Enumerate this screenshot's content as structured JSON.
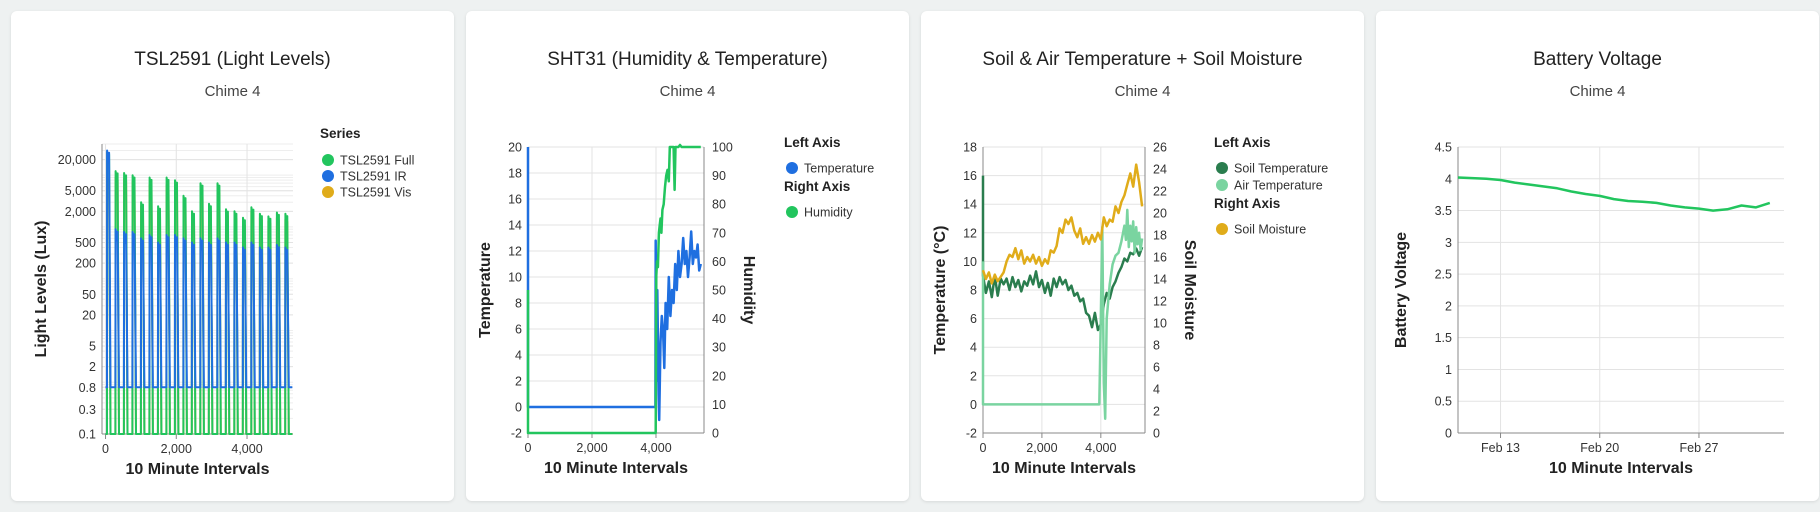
{
  "cards": [
    {
      "title": "TSL2591 (Light Levels)",
      "subtitle": "Chime 4"
    },
    {
      "title": "SHT31 (Humidity & Temperature)",
      "subtitle": "Chime 4"
    },
    {
      "title": "Soil & Air Temperature + Soil Moisture",
      "subtitle": "Chime 4"
    },
    {
      "title": "Battery Voltage",
      "subtitle": "Chime 4"
    }
  ],
  "colors": {
    "full": "#22c55e",
    "ir": "#1f6fe0",
    "vis": "#e0ac1a",
    "temperature": "#1f6fe0",
    "humidity": "#22c55e",
    "soil_temp": "#2a7d4e",
    "air_temp": "#7ad4a0",
    "soil_moisture": "#e0ac1a",
    "battery": "#22c55e",
    "grid": "#e3e3e3",
    "axis": "#888888"
  },
  "chart_data": [
    {
      "type": "line",
      "xlabel": "10 Minute Intervals",
      "ylabel": "Light Levels (Lux)",
      "yscale": "log",
      "xlim": [
        -100,
        5300
      ],
      "ylim": [
        0.1,
        40000
      ],
      "xticks": [
        0,
        2000,
        4000
      ],
      "xtick_labels": [
        "0",
        "2,000",
        "4,000"
      ],
      "yticks": [
        0.1,
        0.3,
        0.8,
        2,
        5,
        20,
        50,
        200,
        500,
        2000,
        5000,
        20000
      ],
      "ytick_labels": [
        "0.1",
        "0.3",
        "0.8",
        "2",
        "5",
        "20",
        "50",
        "200",
        "500",
        "2,000",
        "5,000",
        "20,000"
      ],
      "legend": {
        "title": "Series",
        "position": "right",
        "entries": [
          "TSL2591 Full",
          "TSL2591 IR",
          "TSL2591 Vis"
        ]
      },
      "day_period": 144,
      "series": [
        {
          "name": "TSL2591 Full",
          "color_key": "full",
          "peaks": [
            28000,
            12000,
            11000,
            10000,
            3000,
            9000,
            2500,
            9000,
            8000,
            4000,
            2000,
            7000,
            2800,
            7000,
            2200,
            2000,
            1500,
            2400,
            1800,
            1600,
            1900,
            1800
          ],
          "night": 0.1
        },
        {
          "name": "TSL2591 IR",
          "color_key": "ir",
          "peaks": [
            30000,
            900,
            800,
            800,
            600,
            700,
            500,
            700,
            700,
            600,
            500,
            600,
            500,
            600,
            500,
            500,
            400,
            500,
            400,
            400,
            450,
            400
          ],
          "night": 0.8
        },
        {
          "name": "TSL2591 Vis",
          "color_key": "vis",
          "peaks": [
            9000,
            9000,
            8500,
            7500,
            2500,
            6500,
            2000,
            6500,
            6000,
            3000,
            1500,
            5000,
            2200,
            5000,
            1800,
            1600,
            1200,
            2000,
            1500,
            1300,
            1500,
            1400
          ],
          "night": 0.1
        }
      ]
    },
    {
      "type": "line",
      "xlabel": "10 Minute Intervals",
      "ylabel": "Temperature",
      "y2label": "Humidity",
      "xlim": [
        0,
        5500
      ],
      "ylim": [
        -2,
        20
      ],
      "y2lim": [
        0,
        100
      ],
      "xticks": [
        0,
        2000,
        4000
      ],
      "xtick_labels": [
        "0",
        "2,000",
        "4,000"
      ],
      "yticks": [
        -2,
        0,
        2,
        4,
        6,
        8,
        10,
        12,
        14,
        16,
        18,
        20
      ],
      "y2ticks": [
        0,
        10,
        20,
        30,
        40,
        50,
        60,
        70,
        80,
        90,
        100
      ],
      "legend": {
        "position": "right",
        "left_title": "Left Axis",
        "left_entries": [
          "Temperature"
        ],
        "right_title": "Right Axis",
        "right_entries": [
          "Humidity"
        ]
      },
      "series": [
        {
          "name": "Temperature",
          "axis": "left",
          "color_key": "temperature",
          "x": [
            0,
            0,
            4,
            4,
            3980,
            3990,
            4010,
            4040,
            4080,
            4100,
            4140,
            4180,
            4220,
            4260,
            4300,
            4350,
            4400,
            4450,
            4500,
            4550,
            4600,
            4650,
            4700,
            4750,
            4800,
            4850,
            4900,
            4950,
            5000,
            5050,
            5100,
            5150,
            5200,
            5250,
            5300,
            5350,
            5400
          ],
          "y": [
            20,
            0,
            0,
            0,
            0,
            12.8,
            2,
            9,
            1,
            -1,
            5,
            7,
            6,
            3,
            8,
            6,
            10,
            7,
            9,
            8,
            11,
            9,
            12,
            10,
            11,
            13,
            11,
            12,
            10,
            11.5,
            13.5,
            11,
            12,
            11.5,
            12.5,
            10.5,
            11
          ]
        },
        {
          "name": "Humidity",
          "axis": "right",
          "color_key": "humidity",
          "x": [
            0,
            0,
            3990,
            4010,
            4030,
            4060,
            4090,
            4110,
            4140,
            4170,
            4200,
            4240,
            4280,
            4320,
            4360,
            4400,
            4430,
            4460,
            4500,
            4550,
            4580,
            4610,
            4650,
            4700,
            4750,
            4800,
            4850,
            4900,
            4950,
            5000,
            5100,
            5200,
            5300,
            5400
          ],
          "y": [
            50,
            0,
            0,
            55,
            60,
            58,
            70,
            72,
            75,
            70,
            78,
            80,
            86,
            90,
            92,
            88,
            100,
            100,
            100,
            100,
            85,
            100,
            100,
            100,
            102,
            100,
            100,
            100,
            100,
            100,
            100,
            100,
            100,
            100
          ]
        }
      ]
    },
    {
      "type": "line",
      "xlabel": "10 Minute Intervals",
      "ylabel": "Temperature (°C)",
      "y2label": "Soil Moisture",
      "xlim": [
        0,
        5500
      ],
      "ylim": [
        -2,
        18
      ],
      "y2lim": [
        0,
        26
      ],
      "xticks": [
        0,
        2000,
        4000
      ],
      "xtick_labels": [
        "0",
        "2,000",
        "4,000"
      ],
      "yticks": [
        -2,
        0,
        2,
        4,
        6,
        8,
        10,
        12,
        14,
        16,
        18
      ],
      "y2ticks": [
        0,
        2,
        4,
        6,
        8,
        10,
        12,
        14,
        16,
        18,
        20,
        22,
        24,
        26
      ],
      "legend": {
        "position": "right",
        "left_title": "Left Axis",
        "left_entries": [
          "Soil Temperature",
          "Air Temperature"
        ],
        "right_title": "Right Axis",
        "right_entries": [
          "Soil Moisture"
        ]
      },
      "series": [
        {
          "name": "Soil Temperature",
          "axis": "left",
          "color_key": "soil_temp",
          "x": [
            0,
            0,
            100,
            200,
            300,
            400,
            500,
            600,
            700,
            800,
            900,
            1000,
            1100,
            1200,
            1300,
            1400,
            1500,
            1600,
            1700,
            1800,
            1900,
            2000,
            2100,
            2200,
            2300,
            2400,
            2500,
            2600,
            2700,
            2800,
            2900,
            3000,
            3100,
            3200,
            3300,
            3400,
            3500,
            3600,
            3700,
            3800,
            3900,
            4000,
            4100,
            4200,
            4300,
            4400,
            4500,
            4600,
            4700,
            4800,
            4900,
            5000,
            5100,
            5200,
            5300,
            5400
          ],
          "y": [
            16,
            9,
            7.8,
            8.6,
            7.5,
            9.0,
            7.6,
            8.8,
            8.4,
            8.8,
            8.0,
            8.9,
            8.2,
            8.7,
            7.9,
            8.6,
            8.3,
            9.0,
            8.4,
            9.3,
            8.2,
            8.7,
            7.8,
            8.5,
            7.6,
            8.8,
            8.2,
            8.9,
            8.4,
            8.7,
            8.0,
            8.3,
            7.6,
            7.8,
            7.2,
            7.4,
            6.4,
            6.2,
            5.4,
            6.4,
            5.2,
            5.6,
            7.0,
            7.8,
            7.4,
            8.2,
            8.6,
            9.2,
            9.6,
            10.2,
            10.0,
            10.6,
            10.5,
            10.9,
            10.4,
            11.0
          ]
        },
        {
          "name": "Air Temperature",
          "axis": "left",
          "color_key": "air_temp",
          "x": [
            0,
            0,
            3950,
            4000,
            4050,
            4100,
            4150,
            4200,
            4300,
            4400,
            4500,
            4600,
            4700,
            4800,
            4850,
            4900,
            4950,
            5000,
            5050,
            5100,
            5150,
            5200,
            5250,
            5300,
            5350,
            5400
          ],
          "y": [
            10,
            0,
            0,
            6,
            12.4,
            1.5,
            -1,
            6,
            8.4,
            9.8,
            10.4,
            10.6,
            11.4,
            12.5,
            11.5,
            13.6,
            11,
            12.5,
            11.4,
            12.8,
            10.6,
            12.4,
            11.2,
            12.0,
            10.8,
            11.6
          ]
        },
        {
          "name": "Soil Moisture",
          "axis": "right",
          "color_key": "soil_moisture",
          "x": [
            0,
            100,
            200,
            300,
            400,
            500,
            600,
            700,
            800,
            900,
            1000,
            1100,
            1200,
            1300,
            1400,
            1500,
            1600,
            1700,
            1800,
            1900,
            2000,
            2100,
            2200,
            2300,
            2400,
            2500,
            2600,
            2700,
            2800,
            2900,
            3000,
            3100,
            3200,
            3300,
            3400,
            3500,
            3600,
            3700,
            3800,
            3900,
            4000,
            4100,
            4200,
            4300,
            4400,
            4500,
            4600,
            4700,
            4800,
            4900,
            5000,
            5100,
            5200,
            5300,
            5400
          ],
          "y": [
            14.8,
            14.0,
            14.6,
            13.6,
            14.4,
            13.8,
            14.2,
            14.6,
            15.6,
            16.2,
            16.0,
            16.8,
            15.8,
            16.6,
            15.4,
            16.0,
            15.6,
            16.2,
            15.4,
            16.0,
            15.2,
            15.8,
            15.4,
            16.6,
            16.4,
            17.0,
            18.6,
            18.2,
            19.4,
            19.0,
            19.6,
            18.4,
            17.8,
            18.6,
            17.2,
            17.8,
            17.2,
            18.0,
            17.4,
            18.2,
            17.6,
            19.6,
            18.8,
            19.4,
            19.2,
            20.6,
            20.0,
            21.0,
            21.6,
            22.6,
            23.6,
            22.4,
            24.4,
            22.8,
            20.6
          ]
        }
      ]
    },
    {
      "type": "line",
      "xlabel": "10 Minute Intervals",
      "ylabel": "Battery Voltage",
      "xaxis": "date",
      "xlim": [
        "2025-02-10",
        "2025-03-05"
      ],
      "ylim": [
        0,
        4.5
      ],
      "xticks": [
        "2025-02-13",
        "2025-02-20",
        "2025-02-27"
      ],
      "xtick_labels": [
        "Feb 13",
        "Feb 20",
        "Feb 27"
      ],
      "yticks": [
        0,
        0.5,
        1,
        1.5,
        2,
        2.5,
        3,
        3.5,
        4,
        4.5
      ],
      "ytick_labels": [
        "0",
        "0.5",
        "1",
        "1.5",
        "2",
        "2.5",
        "3",
        "3.5",
        "4",
        "4.5"
      ],
      "series": [
        {
          "name": "Battery Voltage",
          "axis": "left",
          "color_key": "battery",
          "x": [
            "2025-02-10",
            "2025-02-11",
            "2025-02-12",
            "2025-02-13",
            "2025-02-14",
            "2025-02-15",
            "2025-02-16",
            "2025-02-17",
            "2025-02-18",
            "2025-02-19",
            "2025-02-20",
            "2025-02-21",
            "2025-02-22",
            "2025-02-23",
            "2025-02-24",
            "2025-02-25",
            "2025-02-26",
            "2025-02-27",
            "2025-02-28",
            "2025-03-01",
            "2025-03-02",
            "2025-03-03",
            "2025-03-04"
          ],
          "y": [
            4.02,
            4.01,
            4.0,
            3.98,
            3.94,
            3.91,
            3.88,
            3.85,
            3.8,
            3.76,
            3.73,
            3.68,
            3.65,
            3.64,
            3.62,
            3.58,
            3.55,
            3.53,
            3.5,
            3.52,
            3.58,
            3.55,
            3.62
          ]
        }
      ]
    }
  ]
}
